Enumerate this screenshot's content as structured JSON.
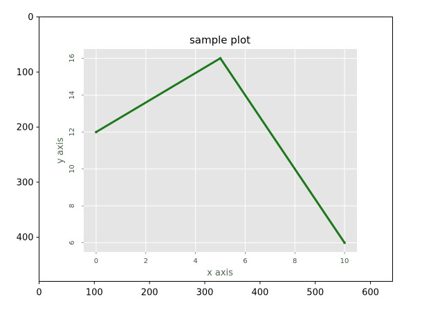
{
  "chart_data": [
    {
      "type": "image-axes",
      "x_ticks": [
        "0",
        "100",
        "200",
        "300",
        "400",
        "500",
        "600"
      ],
      "y_ticks": [
        "0",
        "100",
        "200",
        "300",
        "400"
      ],
      "xlim": [
        0,
        640
      ],
      "ylim": [
        480,
        0
      ]
    },
    {
      "type": "line",
      "title": "sample plot",
      "xlabel": "x axis",
      "ylabel": "y axis",
      "x": [
        0,
        5,
        10
      ],
      "series": [
        {
          "values": [
            12,
            16,
            6
          ],
          "color": "#1a7a1a"
        }
      ],
      "x_ticks": [
        "0",
        "2",
        "4",
        "6",
        "8",
        "10"
      ],
      "y_ticks": [
        "6",
        "8",
        "10",
        "12",
        "14",
        "16"
      ],
      "xlim": [
        -0.5,
        10.5
      ],
      "ylim": [
        5.5,
        16.5
      ],
      "grid": true,
      "background": "#e5e5e5",
      "grid_color": "#ffffff"
    }
  ]
}
